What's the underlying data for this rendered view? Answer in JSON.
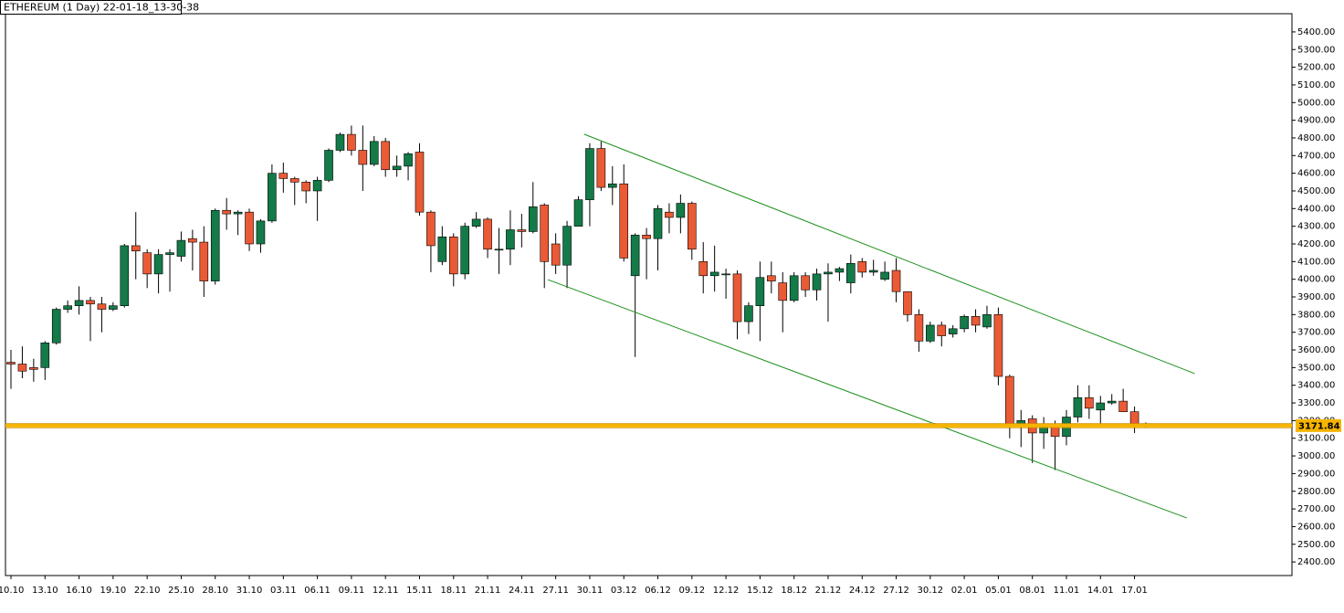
{
  "chart_data": {
    "type": "candlestick",
    "title": "ETHEREUM (1 Day) 22-01-18_13-30-38",
    "categories": [
      "10.10",
      null,
      null,
      "13.10",
      null,
      null,
      "16.10",
      null,
      null,
      "19.10",
      null,
      null,
      "22.10",
      null,
      null,
      "25.10",
      null,
      null,
      "28.10",
      null,
      null,
      "31.10",
      null,
      null,
      "03.11",
      null,
      null,
      "06.11",
      null,
      null,
      "09.11",
      null,
      null,
      "12.11",
      null,
      null,
      "15.11",
      null,
      null,
      "18.11",
      null,
      null,
      "21.11",
      null,
      null,
      "24.11",
      null,
      null,
      "27.11",
      null,
      null,
      "30.11",
      null,
      null,
      "03.12",
      null,
      null,
      "06.12",
      null,
      null,
      "09.12",
      null,
      null,
      "12.12",
      null,
      null,
      "15.12",
      null,
      null,
      "18.12",
      null,
      null,
      "21.12",
      null,
      null,
      "24.12",
      null,
      null,
      "27.12",
      null,
      null,
      "30.12",
      null,
      null,
      "02.01",
      null,
      null,
      "05.01",
      null,
      null,
      "08.01",
      null,
      null,
      "11.01",
      null,
      null,
      "14.01",
      null,
      null,
      "17.01",
      null
    ],
    "open": [
      3530,
      3520,
      3500,
      3500,
      3640,
      3830,
      3850,
      3880,
      3860,
      3830,
      3850,
      4190,
      4150,
      4030,
      4140,
      4130,
      4230,
      4210,
      3990,
      4390,
      4370,
      4380,
      4200,
      4330,
      4600,
      4570,
      4550,
      4500,
      4560,
      4730,
      4820,
      4730,
      4650,
      4780,
      4620,
      4640,
      4720,
      4380,
      4100,
      4240,
      4030,
      4300,
      4340,
      4170,
      4170,
      4280,
      4270,
      4420,
      4200,
      4080,
      4300,
      4450,
      4740,
      4520,
      4540,
      4020,
      4250,
      4230,
      4380,
      4350,
      4430,
      4100,
      4020,
      4030,
      4030,
      3760,
      3850,
      4020,
      3980,
      3880,
      4020,
      3940,
      4030,
      4040,
      3980,
      4100,
      4040,
      4000,
      4050,
      3930,
      3800,
      3650,
      3740,
      3690,
      3720,
      3790,
      3730,
      3800,
      3450,
      3180,
      3210,
      3130,
      3170,
      3110,
      3220,
      3330,
      3260,
      3300,
      3310,
      3250,
      3180
    ],
    "high": [
      3600,
      3620,
      3550,
      3650,
      3840,
      3880,
      3960,
      3900,
      3900,
      3870,
      4200,
      4380,
      4170,
      4170,
      4170,
      4270,
      4280,
      4300,
      4400,
      4460,
      4390,
      4400,
      4340,
      4650,
      4660,
      4580,
      4560,
      4580,
      4740,
      4830,
      4870,
      4870,
      4810,
      4800,
      4700,
      4720,
      4770,
      4390,
      4300,
      4260,
      4320,
      4380,
      4350,
      4290,
      4390,
      4370,
      4550,
      4430,
      4260,
      4330,
      4470,
      4770,
      4780,
      4640,
      4650,
      4260,
      4290,
      4420,
      4430,
      4480,
      4440,
      4210,
      4190,
      4060,
      4050,
      3870,
      4100,
      4100,
      4040,
      4040,
      4040,
      4060,
      4090,
      4070,
      4140,
      4120,
      4110,
      4100,
      4120,
      3930,
      3830,
      3760,
      3760,
      3740,
      3800,
      3830,
      3850,
      3840,
      3460,
      3260,
      3230,
      3220,
      3200,
      3260,
      3400,
      3400,
      3340,
      3350,
      3380,
      3280,
      3190
    ],
    "low": [
      3380,
      3440,
      3420,
      3430,
      3630,
      3810,
      3800,
      3650,
      3700,
      3820,
      3840,
      4000,
      3950,
      3920,
      3930,
      4100,
      4050,
      3900,
      3970,
      4280,
      4250,
      4160,
      4150,
      4320,
      4490,
      4420,
      4430,
      4330,
      4550,
      4720,
      4700,
      4500,
      4640,
      4580,
      4580,
      4560,
      4360,
      4040,
      4080,
      3960,
      4000,
      4290,
      4120,
      4030,
      4080,
      4180,
      4260,
      3950,
      4030,
      3950,
      4300,
      4300,
      4500,
      4420,
      4100,
      3560,
      4000,
      4050,
      4260,
      4260,
      4110,
      3920,
      3930,
      3890,
      3660,
      3690,
      3650,
      3920,
      3700,
      3870,
      3900,
      3880,
      3760,
      3990,
      3920,
      4010,
      4020,
      3990,
      3870,
      3760,
      3590,
      3640,
      3620,
      3670,
      3700,
      3700,
      3720,
      3400,
      3100,
      3050,
      2960,
      3040,
      2920,
      3060,
      3190,
      3210,
      3180,
      3290,
      3250,
      3130,
      3160
    ],
    "close": [
      3520,
      3480,
      3490,
      3640,
      3830,
      3850,
      3880,
      3860,
      3830,
      3850,
      4190,
      4160,
      4030,
      4140,
      4150,
      4220,
      4210,
      3990,
      4390,
      4370,
      4380,
      4200,
      4330,
      4600,
      4570,
      4550,
      4500,
      4560,
      4730,
      4820,
      4730,
      4650,
      4780,
      4620,
      4640,
      4710,
      4380,
      4190,
      4240,
      4030,
      4300,
      4340,
      4170,
      4170,
      4280,
      4270,
      4410,
      4100,
      4080,
      4300,
      4450,
      4740,
      4520,
      4540,
      4120,
      4250,
      4230,
      4400,
      4350,
      4430,
      4170,
      4020,
      4040,
      4030,
      3760,
      3850,
      4010,
      3990,
      3880,
      4020,
      3940,
      4030,
      4040,
      4060,
      4090,
      4040,
      4050,
      4040,
      3930,
      3800,
      3650,
      3740,
      3680,
      3720,
      3790,
      3740,
      3800,
      3450,
      3180,
      3200,
      3130,
      3170,
      3110,
      3220,
      3330,
      3270,
      3300,
      3310,
      3250,
      3180,
      3170
    ],
    "up_color": "#137a48",
    "down_color": "#ea5a35",
    "ylim": [
      2323,
      5503
    ],
    "yticks": [
      {
        "value": 2400,
        "label": "2400.00"
      },
      {
        "value": 2500,
        "label": "2500.00"
      },
      {
        "value": 2600,
        "label": "2600.00"
      },
      {
        "value": 2700,
        "label": "2700.00"
      },
      {
        "value": 2800,
        "label": "2800.00"
      },
      {
        "value": 2900,
        "label": "2900.00"
      },
      {
        "value": 3000,
        "label": "3000.00"
      },
      {
        "value": 3100,
        "label": "3100.00"
      },
      {
        "value": 3200,
        "label": "3200.00"
      },
      {
        "value": 3300,
        "label": "3300.00"
      },
      {
        "value": 3400,
        "label": "3400.00"
      },
      {
        "value": 3500,
        "label": "3500.00"
      },
      {
        "value": 3600,
        "label": "3600.00"
      },
      {
        "value": 3700,
        "label": "3700.00"
      },
      {
        "value": 3800,
        "label": "3800.00"
      },
      {
        "value": 3900,
        "label": "3900.00"
      },
      {
        "value": 4000,
        "label": "4000.00"
      },
      {
        "value": 4100,
        "label": "4100.00"
      },
      {
        "value": 4200,
        "label": "4200.00"
      },
      {
        "value": 4300,
        "label": "4300.00"
      },
      {
        "value": 4400,
        "label": "4400.00"
      },
      {
        "value": 4500,
        "label": "4500.00"
      },
      {
        "value": 4600,
        "label": "4600.00"
      },
      {
        "value": 4700,
        "label": "4700.00"
      },
      {
        "value": 4800,
        "label": "4800.00"
      },
      {
        "value": 4900,
        "label": "4900.00"
      },
      {
        "value": 5000,
        "label": "5000.00"
      },
      {
        "value": 5100,
        "label": "5100.00"
      },
      {
        "value": 5200,
        "label": "5200.00"
      },
      {
        "value": 5300,
        "label": "5300.00"
      },
      {
        "value": 5400,
        "label": "5400.00"
      }
    ],
    "price_line": {
      "value": 3171.84,
      "color": "#f5b400"
    },
    "trendlines": [
      {
        "x": [
          50.5,
          104.3
        ],
        "y": [
          4821,
          3466
        ],
        "color": "#1a8f1a"
      },
      {
        "x": [
          47.3,
          103.6
        ],
        "y": [
          3998,
          2649
        ],
        "color": "#1a8f1a"
      }
    ]
  }
}
